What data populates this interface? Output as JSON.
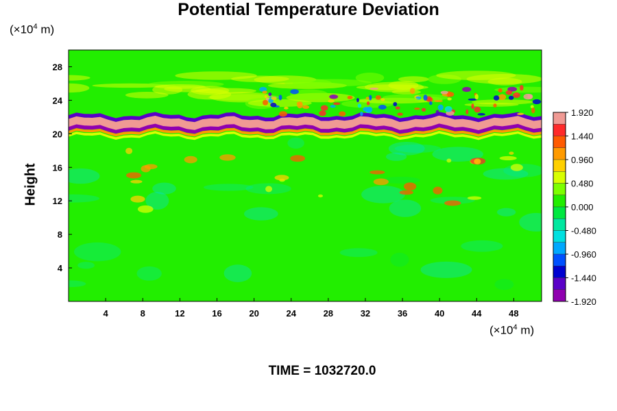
{
  "chart_data": {
    "type": "heatmap",
    "title": "Potential Temperature Deviation",
    "ylabel": "Height",
    "y_unit": {
      "prefix": "(×10",
      "exp": "4",
      "suffix": " m)"
    },
    "x_unit": {
      "prefix": "(×10",
      "exp": "4",
      "suffix": " m)"
    },
    "xlim": [
      0,
      51
    ],
    "ylim": [
      0,
      30
    ],
    "x_ticks": [
      "4",
      "8",
      "12",
      "16",
      "20",
      "24",
      "28",
      "32",
      "36",
      "40",
      "44",
      "48"
    ],
    "y_ticks": [
      "4",
      "8",
      "12",
      "16",
      "20",
      "24",
      "28"
    ],
    "colorbar": {
      "range": [
        -1.92,
        1.92
      ],
      "labels": [
        "1.920",
        "1.440",
        "0.960",
        "0.480",
        "0.000",
        "-0.480",
        "-0.960",
        "-1.440",
        "-1.920"
      ],
      "colors": [
        "#f09a94",
        "#ff2a2a",
        "#ff5a00",
        "#ff9a00",
        "#ffd000",
        "#d8ff00",
        "#7cff00",
        "#22ee00",
        "#00e840",
        "#00e8a0",
        "#00e0e0",
        "#00a8ff",
        "#0050ff",
        "#0000d0",
        "#5a00c8",
        "#9000b0"
      ]
    },
    "background_value": 0.1,
    "features": [
      {
        "name": "tropopause band",
        "y": [
          20.0,
          22.0
        ],
        "x": [
          0,
          51
        ],
        "range": [
          -1.92,
          1.92
        ]
      },
      {
        "name": "gravity waves",
        "y": [
          22.5,
          26.0
        ],
        "x": [
          20,
          51
        ],
        "range": [
          -0.96,
          0.96
        ]
      },
      {
        "name": "convective warm patches",
        "y": [
          11.0,
          18.0
        ],
        "x": [
          6,
          50
        ],
        "range": [
          0.48,
          1.44
        ]
      }
    ]
  },
  "footer": {
    "time_label": "TIME = 1032720.0"
  }
}
